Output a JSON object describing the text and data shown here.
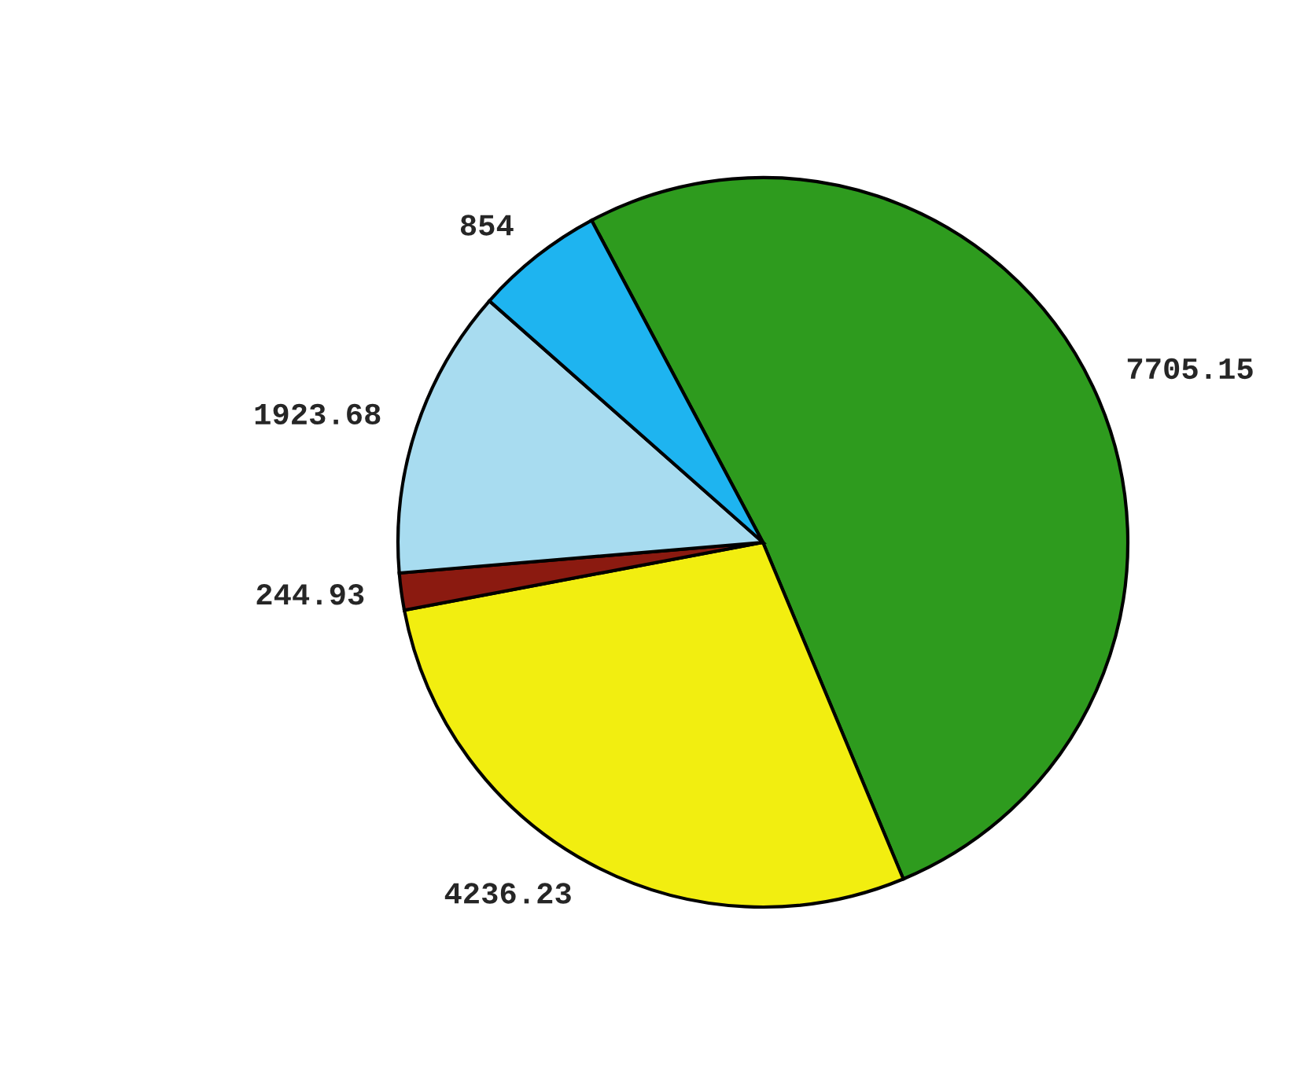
{
  "chart_data": {
    "type": "pie",
    "categories": [
      null,
      null,
      null,
      null,
      null
    ],
    "values": [
      7705.15,
      4236.23,
      244.93,
      1923.68,
      854
    ],
    "colors": [
      "#2e9b1e",
      "#f2ee10",
      "#8b1a10",
      "#a8dcf0",
      "#1eb4f0"
    ],
    "data_labels": true
  }
}
